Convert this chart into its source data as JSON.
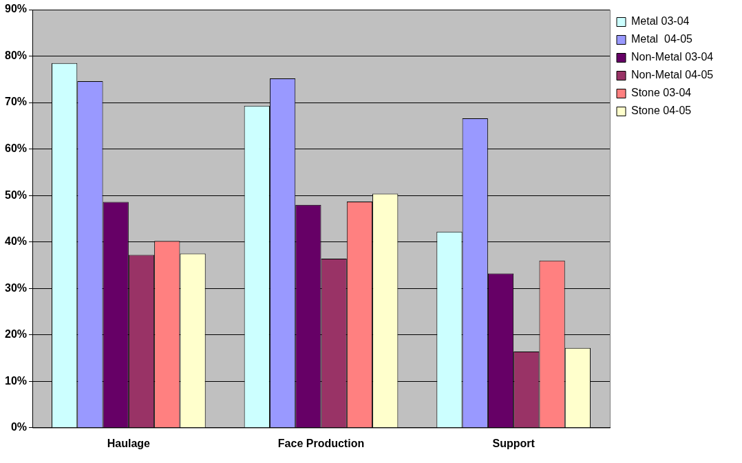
{
  "chart_data": {
    "type": "bar",
    "categories": [
      "Haulage",
      "Face Production",
      "Support"
    ],
    "series": [
      {
        "name": "Metal 03-04",
        "color": "#ccffff",
        "values": [
          78.5,
          69.3,
          42.2
        ]
      },
      {
        "name": "Metal  04-05",
        "color": "#9999ff",
        "values": [
          74.6,
          75.2,
          66.6
        ]
      },
      {
        "name": "Non-Metal 03-04",
        "color": "#660066",
        "values": [
          48.6,
          48.0,
          33.2
        ]
      },
      {
        "name": "Non-Metal 04-05",
        "color": "#993366",
        "values": [
          37.2,
          36.4,
          16.4
        ]
      },
      {
        "name": "Stone 03-04",
        "color": "#ff8080",
        "values": [
          40.2,
          48.7,
          36.0
        ]
      },
      {
        "name": "Stone 04-05",
        "color": "#ffffcc",
        "values": [
          37.5,
          50.4,
          17.2
        ]
      }
    ],
    "ylim": [
      0,
      90
    ],
    "yticks": [
      {
        "value": 0,
        "label": "0%"
      },
      {
        "value": 10,
        "label": "10%"
      },
      {
        "value": 20,
        "label": "20%"
      },
      {
        "value": 30,
        "label": "30%"
      },
      {
        "value": 40,
        "label": "40%"
      },
      {
        "value": 50,
        "label": "50%"
      },
      {
        "value": 60,
        "label": "60%"
      },
      {
        "value": 70,
        "label": "70%"
      },
      {
        "value": 80,
        "label": "80%"
      },
      {
        "value": 90,
        "label": "90%"
      }
    ],
    "grid": "y",
    "legend": "top right"
  }
}
